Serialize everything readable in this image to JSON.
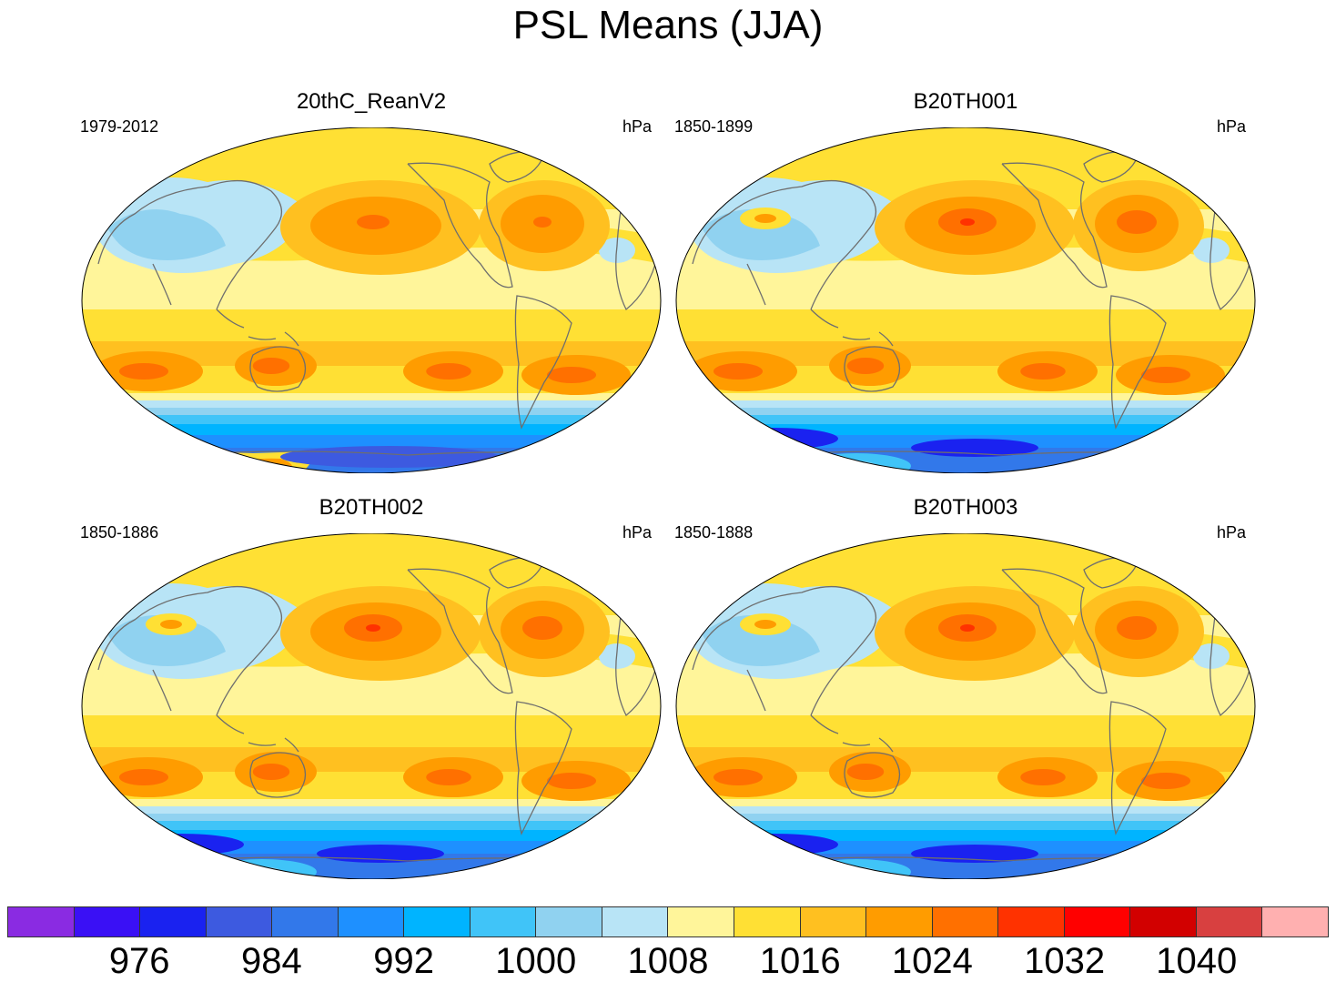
{
  "figure": {
    "title": "PSL Means (JJA)"
  },
  "panels": [
    {
      "title": "20thC_ReanV2",
      "period": "1979-2012",
      "units": "hPa",
      "variant": "rean"
    },
    {
      "title": "B20TH001",
      "period": "1850-1899",
      "units": "hPa",
      "variant": "model"
    },
    {
      "title": "B20TH002",
      "period": "1850-1886",
      "units": "hPa",
      "variant": "model"
    },
    {
      "title": "B20TH003",
      "period": "1850-1888",
      "units": "hPa",
      "variant": "model"
    }
  ],
  "colorbar": {
    "colors": [
      "#8a2be2",
      "#3a10f5",
      "#1a22f0",
      "#3d5ae0",
      "#3278ea",
      "#1e90ff",
      "#00b4ff",
      "#40c4f8",
      "#90d2f0",
      "#b8e4f6",
      "#fff59a",
      "#ffe034",
      "#ffc020",
      "#ff9c00",
      "#ff7000",
      "#ff3200",
      "#ff0000",
      "#d20000",
      "#d84040",
      "#ffb0b0"
    ],
    "labels": [
      "976",
      "984",
      "992",
      "1000",
      "1008",
      "1016",
      "1024",
      "1032",
      "1040"
    ],
    "label_values": [
      976,
      984,
      992,
      1000,
      1008,
      1016,
      1024,
      1032,
      1040
    ],
    "level_min": 968,
    "level_step": 4,
    "level_count": 20
  },
  "chart_data": {
    "type": "map",
    "variable": "PSL",
    "season": "JJA",
    "units": "hPa",
    "maps": [
      {
        "name": "20thC_ReanV2",
        "period": "1979-2012"
      },
      {
        "name": "B20TH001",
        "period": "1850-1899"
      },
      {
        "name": "B20TH002",
        "period": "1850-1886"
      },
      {
        "name": "B20TH003",
        "period": "1850-1888"
      }
    ]
  }
}
